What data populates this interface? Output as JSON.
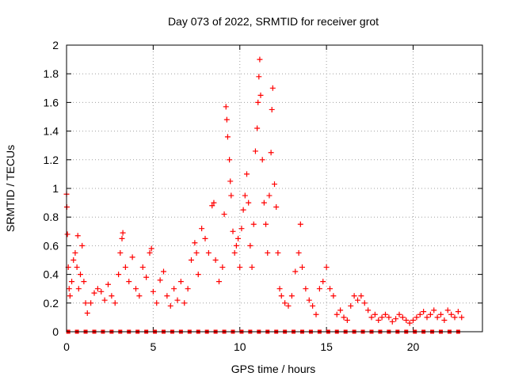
{
  "chart_data": {
    "type": "scatter",
    "title": "Day 073 of 2022, SRMTID for receiver grot",
    "xlabel": "GPS time / hours",
    "ylabel": "SRMTID / TECUs",
    "xlim": [
      0,
      24
    ],
    "ylim": [
      0,
      2
    ],
    "x_ticks": [
      0,
      5,
      10,
      15,
      20
    ],
    "x_tick_labels": [
      "0",
      "5",
      "10",
      "15",
      "20"
    ],
    "y_ticks": [
      0,
      0.2,
      0.4,
      0.6,
      0.8,
      1,
      1.2,
      1.4,
      1.6,
      1.8,
      2
    ],
    "y_tick_labels": [
      "0",
      "0.2",
      "0.4",
      "0.6",
      "0.8",
      "1",
      "1.2",
      "1.4",
      "1.6",
      "1.8",
      "2"
    ],
    "grid": true,
    "marker_color": "#ff0000",
    "series": [
      {
        "name": "SRMTID",
        "marker": "plus",
        "points": [
          [
            0.0,
            0.96
          ],
          [
            0.02,
            0.87
          ],
          [
            0.05,
            0.68
          ],
          [
            0.1,
            0.45
          ],
          [
            0.15,
            0.3
          ],
          [
            0.2,
            0.25
          ],
          [
            0.3,
            0.35
          ],
          [
            0.4,
            0.5
          ],
          [
            0.5,
            0.55
          ],
          [
            0.6,
            0.45
          ],
          [
            0.65,
            0.67
          ],
          [
            0.7,
            0.3
          ],
          [
            0.8,
            0.4
          ],
          [
            0.9,
            0.6
          ],
          [
            1.0,
            0.35
          ],
          [
            1.1,
            0.2
          ],
          [
            1.2,
            0.13
          ],
          [
            1.4,
            0.2
          ],
          [
            1.6,
            0.27
          ],
          [
            1.8,
            0.3
          ],
          [
            2.0,
            0.28
          ],
          [
            2.2,
            0.22
          ],
          [
            2.4,
            0.33
          ],
          [
            2.6,
            0.25
          ],
          [
            2.8,
            0.2
          ],
          [
            3.0,
            0.4
          ],
          [
            3.1,
            0.55
          ],
          [
            3.2,
            0.65
          ],
          [
            3.25,
            0.69
          ],
          [
            3.4,
            0.45
          ],
          [
            3.6,
            0.35
          ],
          [
            3.8,
            0.52
          ],
          [
            4.0,
            0.3
          ],
          [
            4.2,
            0.25
          ],
          [
            4.4,
            0.45
          ],
          [
            4.6,
            0.38
          ],
          [
            4.8,
            0.55
          ],
          [
            4.9,
            0.58
          ],
          [
            5.0,
            0.28
          ],
          [
            5.2,
            0.2
          ],
          [
            5.4,
            0.36
          ],
          [
            5.6,
            0.42
          ],
          [
            5.8,
            0.25
          ],
          [
            6.0,
            0.18
          ],
          [
            6.2,
            0.3
          ],
          [
            6.4,
            0.22
          ],
          [
            6.6,
            0.35
          ],
          [
            6.8,
            0.2
          ],
          [
            7.0,
            0.3
          ],
          [
            7.2,
            0.5
          ],
          [
            7.4,
            0.62
          ],
          [
            7.5,
            0.55
          ],
          [
            7.6,
            0.4
          ],
          [
            7.8,
            0.72
          ],
          [
            8.0,
            0.65
          ],
          [
            8.2,
            0.55
          ],
          [
            8.4,
            0.88
          ],
          [
            8.5,
            0.9
          ],
          [
            8.6,
            0.5
          ],
          [
            8.8,
            0.35
          ],
          [
            9.0,
            0.45
          ],
          [
            9.1,
            0.82
          ],
          [
            9.2,
            1.57
          ],
          [
            9.25,
            1.48
          ],
          [
            9.3,
            1.36
          ],
          [
            9.4,
            1.2
          ],
          [
            9.45,
            1.05
          ],
          [
            9.5,
            0.95
          ],
          [
            9.6,
            0.7
          ],
          [
            9.7,
            0.55
          ],
          [
            9.8,
            0.6
          ],
          [
            9.9,
            0.65
          ],
          [
            10.0,
            0.45
          ],
          [
            10.1,
            0.72
          ],
          [
            10.2,
            0.85
          ],
          [
            10.3,
            0.95
          ],
          [
            10.4,
            1.1
          ],
          [
            10.5,
            0.9
          ],
          [
            10.6,
            0.6
          ],
          [
            10.7,
            0.45
          ],
          [
            10.8,
            0.75
          ],
          [
            10.9,
            1.26
          ],
          [
            11.0,
            1.42
          ],
          [
            11.05,
            1.6
          ],
          [
            11.1,
            1.78
          ],
          [
            11.15,
            1.9
          ],
          [
            11.2,
            1.65
          ],
          [
            11.3,
            1.2
          ],
          [
            11.4,
            0.9
          ],
          [
            11.5,
            0.75
          ],
          [
            11.6,
            0.55
          ],
          [
            11.7,
            0.95
          ],
          [
            11.8,
            1.25
          ],
          [
            11.85,
            1.55
          ],
          [
            11.9,
            1.7
          ],
          [
            12.0,
            1.03
          ],
          [
            12.1,
            0.87
          ],
          [
            12.2,
            0.55
          ],
          [
            12.3,
            0.3
          ],
          [
            12.4,
            0.25
          ],
          [
            12.6,
            0.2
          ],
          [
            12.8,
            0.18
          ],
          [
            13.0,
            0.25
          ],
          [
            13.2,
            0.42
          ],
          [
            13.4,
            0.55
          ],
          [
            13.5,
            0.75
          ],
          [
            13.6,
            0.45
          ],
          [
            13.8,
            0.3
          ],
          [
            14.0,
            0.22
          ],
          [
            14.2,
            0.18
          ],
          [
            14.4,
            0.12
          ],
          [
            14.6,
            0.3
          ],
          [
            14.8,
            0.35
          ],
          [
            15.0,
            0.45
          ],
          [
            15.2,
            0.3
          ],
          [
            15.4,
            0.25
          ],
          [
            15.6,
            0.12
          ],
          [
            15.8,
            0.15
          ],
          [
            16.0,
            0.1
          ],
          [
            16.2,
            0.08
          ],
          [
            16.4,
            0.18
          ],
          [
            16.6,
            0.25
          ],
          [
            16.8,
            0.22
          ],
          [
            17.0,
            0.25
          ],
          [
            17.2,
            0.2
          ],
          [
            17.4,
            0.15
          ],
          [
            17.6,
            0.1
          ],
          [
            17.8,
            0.12
          ],
          [
            18.0,
            0.08
          ],
          [
            18.2,
            0.1
          ],
          [
            18.4,
            0.12
          ],
          [
            18.6,
            0.1
          ],
          [
            18.8,
            0.07
          ],
          [
            19.0,
            0.09
          ],
          [
            19.2,
            0.12
          ],
          [
            19.4,
            0.1
          ],
          [
            19.6,
            0.08
          ],
          [
            19.8,
            0.06
          ],
          [
            20.0,
            0.08
          ],
          [
            20.2,
            0.1
          ],
          [
            20.4,
            0.12
          ],
          [
            20.6,
            0.14
          ],
          [
            20.8,
            0.1
          ],
          [
            21.0,
            0.12
          ],
          [
            21.2,
            0.15
          ],
          [
            21.4,
            0.1
          ],
          [
            21.6,
            0.12
          ],
          [
            21.8,
            0.08
          ],
          [
            22.0,
            0.15
          ],
          [
            22.2,
            0.12
          ],
          [
            22.4,
            0.1
          ],
          [
            22.6,
            0.14
          ],
          [
            22.8,
            0.1
          ]
        ]
      },
      {
        "name": "zero-baseline",
        "marker": "square",
        "x_start": 0.1,
        "x_end": 22.6,
        "x_step": 0.5,
        "y": 0
      }
    ]
  }
}
